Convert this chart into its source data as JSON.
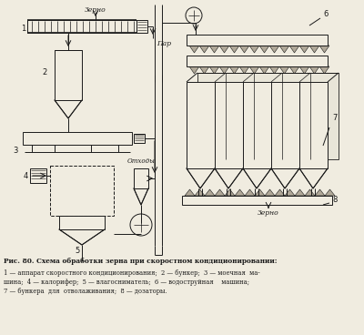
{
  "title_line1": "Рис. 80. Схема обработки зерна при скоростном кондиционировании:",
  "title_line2": "1 — аппарат скоростного кондиционирования;  2 — бункер;  3 — моечная  ма-",
  "title_line3": "шина;  4 — калорифер;  5 — влагосниматель;  6 — водоструйная    машина;",
  "title_line4": "7 — бункера  для  отволаживания;  8 — дозаторы.",
  "bg_color": "#f0ece0",
  "line_color": "#1a1a1a",
  "label_zerno_top": "Зерно",
  "label_par": "Пар",
  "label_othody": "Отходы",
  "label_zerno_bot": "Зерно"
}
